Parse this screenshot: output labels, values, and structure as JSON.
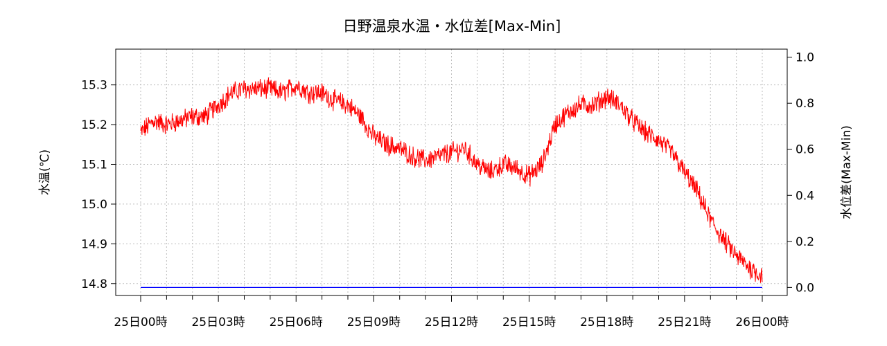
{
  "chart_data": {
    "type": "line",
    "title": "日野温泉水温・水位差[Max-Min]",
    "ylabel": "水温(℃)",
    "y2label": "水位差(Max-Min)",
    "x_ticks": [
      "25日00時",
      "25日03時",
      "25日06時",
      "25日09時",
      "25日12時",
      "25日15時",
      "25日18時",
      "25日21時",
      "26日00時"
    ],
    "x_range_hours": [
      0,
      24
    ],
    "ylim": [
      14.77,
      15.39
    ],
    "y_ticks": [
      "14.8",
      "14.9",
      "15.0",
      "15.1",
      "15.2",
      "15.3"
    ],
    "y2lim": [
      -0.035,
      1.035
    ],
    "y2_ticks": [
      "0.0",
      "0.2",
      "0.4",
      "0.6",
      "0.8",
      "1.0"
    ],
    "grid": true,
    "series": [
      {
        "axis": "left",
        "color": "#ff0000",
        "x_hours": [
          0,
          0.5,
          1,
          1.5,
          2,
          2.5,
          3,
          3.5,
          4,
          4.5,
          5,
          5.5,
          6,
          6.5,
          7,
          7.5,
          8,
          8.5,
          9,
          9.5,
          10,
          10.5,
          11,
          11.5,
          12,
          12.5,
          13,
          13.5,
          14,
          14.5,
          15,
          15.5,
          16,
          16.5,
          17,
          17.5,
          18,
          18.5,
          19,
          19.5,
          20,
          20.5,
          21,
          21.5,
          22,
          22.5,
          23,
          23.5,
          24
        ],
        "values": [
          15.18,
          15.21,
          15.2,
          15.21,
          15.22,
          15.22,
          15.25,
          15.28,
          15.29,
          15.29,
          15.29,
          15.28,
          15.3,
          15.28,
          15.28,
          15.26,
          15.25,
          15.22,
          15.17,
          15.15,
          15.14,
          15.12,
          15.11,
          15.12,
          15.13,
          15.14,
          15.1,
          15.08,
          15.1,
          15.09,
          15.07,
          15.1,
          15.2,
          15.23,
          15.25,
          15.25,
          15.27,
          15.25,
          15.21,
          15.18,
          15.16,
          15.13,
          15.08,
          15.03,
          14.96,
          14.91,
          14.87,
          14.84,
          14.82
        ]
      },
      {
        "axis": "right",
        "color": "#0000ff",
        "x_hours": [
          0,
          24
        ],
        "values": [
          0.0,
          0.0
        ]
      }
    ]
  }
}
